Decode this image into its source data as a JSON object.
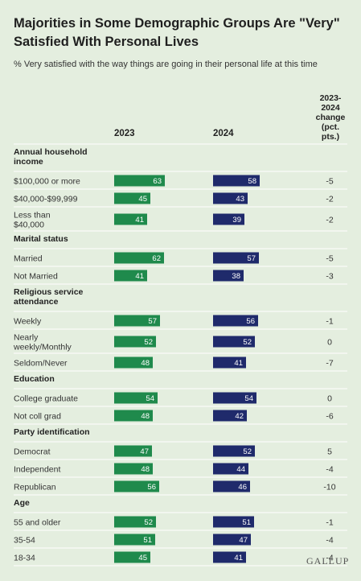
{
  "title": "Majorities in Some Demographic Groups Are \"Very\" Satisfied With Personal Lives",
  "subtitle": "% Very satisfied with the way things are going in their personal life at this time",
  "columns": {
    "y2023": "2023",
    "y2024": "2024",
    "change": "2023-\n2024\nchange\n(pct.\npts.)"
  },
  "logo": "GALLUP",
  "colors": {
    "bar2023": "#1f8a4c",
    "bar2024": "#1f2a6b",
    "background": "#e4eedf"
  },
  "chart_data": {
    "type": "bar",
    "series": [
      {
        "name": "2023",
        "color": "#1f8a4c"
      },
      {
        "name": "2024",
        "color": "#1f2a6b"
      }
    ],
    "xlim": [
      0,
      100
    ],
    "groups": [
      {
        "label": "Annual household income",
        "rows": [
          {
            "label": "$100,000 or more",
            "v2023": 63,
            "v2024": 58,
            "change": "-5"
          },
          {
            "label": "$40,000-$99,999",
            "v2023": 45,
            "v2024": 43,
            "change": "-2"
          },
          {
            "label": "Less than $40,000",
            "v2023": 41,
            "v2024": 39,
            "change": "-2"
          }
        ]
      },
      {
        "label": "Marital status",
        "rows": [
          {
            "label": "Married",
            "v2023": 62,
            "v2024": 57,
            "change": "-5"
          },
          {
            "label": "Not Married",
            "v2023": 41,
            "v2024": 38,
            "change": "-3"
          }
        ]
      },
      {
        "label": "Religious service attendance",
        "rows": [
          {
            "label": "Weekly",
            "v2023": 57,
            "v2024": 56,
            "change": "-1"
          },
          {
            "label": "Nearly weekly/Monthly",
            "v2023": 52,
            "v2024": 52,
            "change": "0"
          },
          {
            "label": "Seldom/Never",
            "v2023": 48,
            "v2024": 41,
            "change": "-7"
          }
        ]
      },
      {
        "label": "Education",
        "rows": [
          {
            "label": "College graduate",
            "v2023": 54,
            "v2024": 54,
            "change": "0"
          },
          {
            "label": "Not coll grad",
            "v2023": 48,
            "v2024": 42,
            "change": "-6"
          }
        ]
      },
      {
        "label": "Party identification",
        "rows": [
          {
            "label": "Democrat",
            "v2023": 47,
            "v2024": 52,
            "change": "5"
          },
          {
            "label": "Independent",
            "v2023": 48,
            "v2024": 44,
            "change": "-4"
          },
          {
            "label": "Republican",
            "v2023": 56,
            "v2024": 46,
            "change": "-10"
          }
        ]
      },
      {
        "label": "Age",
        "rows": [
          {
            "label": "55 and older",
            "v2023": 52,
            "v2024": 51,
            "change": "-1"
          },
          {
            "label": "35-54",
            "v2023": 51,
            "v2024": 47,
            "change": "-4"
          },
          {
            "label": "18-34",
            "v2023": 45,
            "v2024": 41,
            "change": "-4"
          }
        ]
      }
    ]
  }
}
